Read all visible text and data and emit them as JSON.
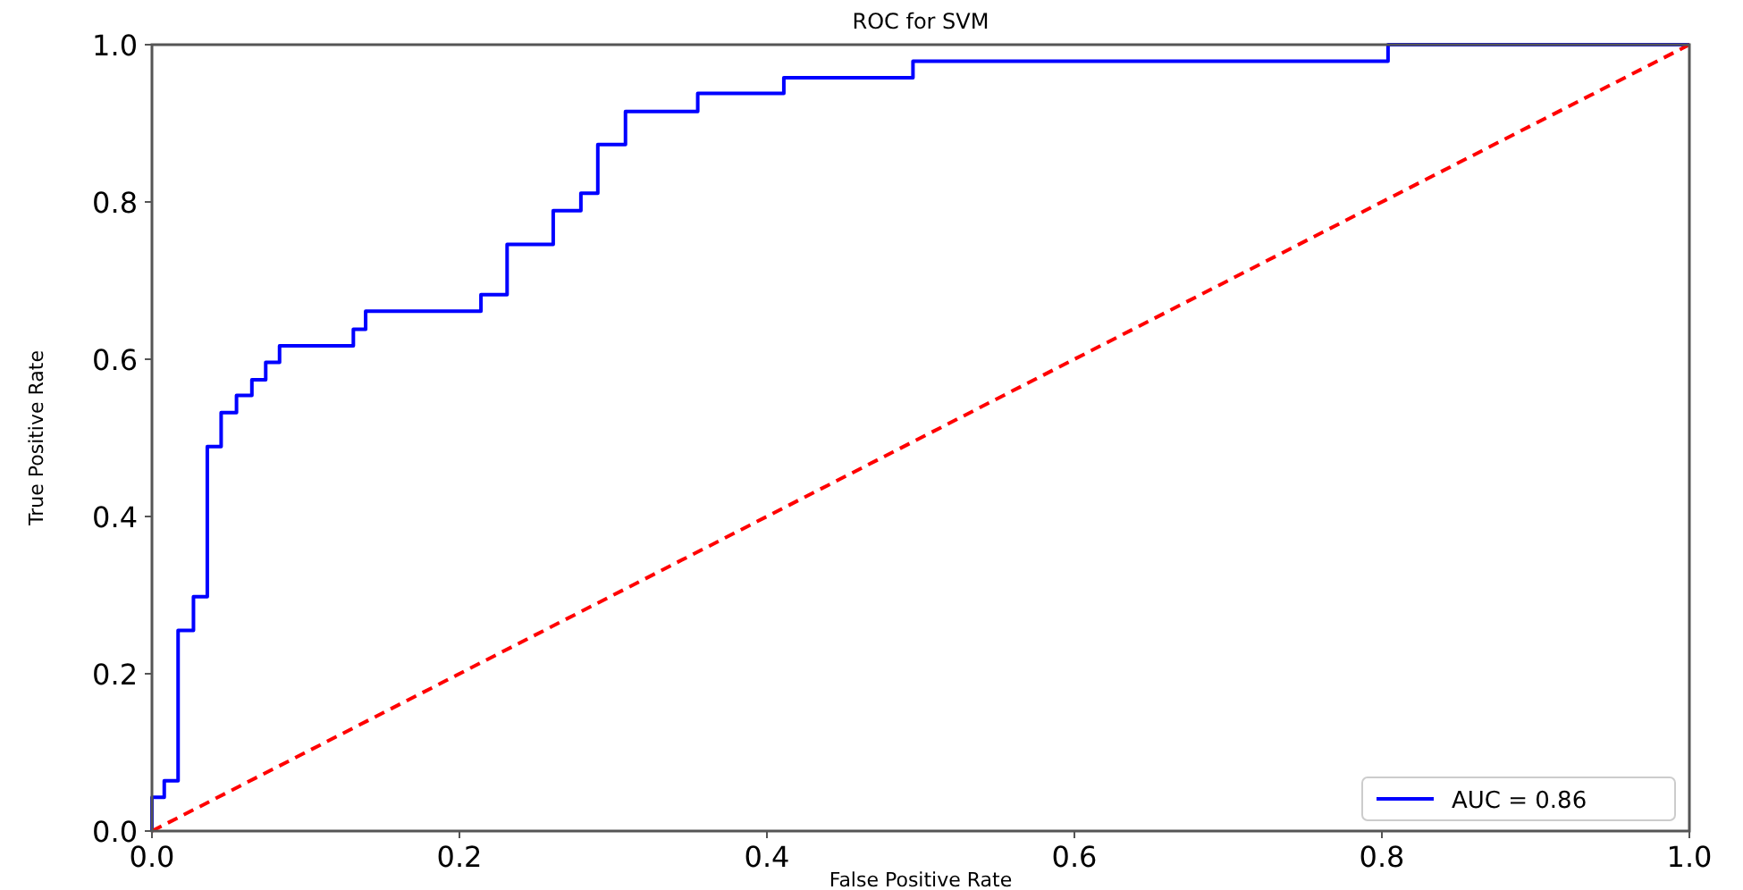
{
  "chart_data": {
    "type": "line",
    "title": "ROC for SVM",
    "xlabel": "False Positive Rate",
    "ylabel": "True Positive Rate",
    "xlim": [
      0,
      1
    ],
    "ylim": [
      0,
      1
    ],
    "xticks": [
      {
        "value": 0,
        "label": "0.0"
      },
      {
        "value": 0.2,
        "label": "0.2"
      },
      {
        "value": 0.4,
        "label": "0.4"
      },
      {
        "value": 0.6,
        "label": "0.6"
      },
      {
        "value": 0.8,
        "label": "0.8"
      },
      {
        "value": 1,
        "label": "1.0"
      }
    ],
    "yticks": [
      {
        "value": 0,
        "label": "0.0"
      },
      {
        "value": 0.2,
        "label": "0.2"
      },
      {
        "value": 0.4,
        "label": "0.4"
      },
      {
        "value": 0.6,
        "label": "0.6"
      },
      {
        "value": 0.8,
        "label": "0.8"
      },
      {
        "value": 1,
        "label": "1.0"
      }
    ],
    "grid": false,
    "legend": "bottom right",
    "series": [
      {
        "name": "AUC = 0.86",
        "color": "#0000ff",
        "line_style": "solid",
        "x": [
          0,
          0,
          0.008,
          0.008,
          0.017,
          0.017,
          0.027,
          0.027,
          0.036,
          0.036,
          0.045,
          0.045,
          0.055,
          0.055,
          0.065,
          0.065,
          0.074,
          0.074,
          0.083,
          0.083,
          0.131,
          0.131,
          0.139,
          0.139,
          0.214,
          0.214,
          0.231,
          0.231,
          0.261,
          0.261,
          0.279,
          0.279,
          0.29,
          0.29,
          0.308,
          0.308,
          0.355,
          0.355,
          0.411,
          0.411,
          0.495,
          0.495,
          0.804,
          0.804,
          1
        ],
        "values": [
          0,
          0.043,
          0.043,
          0.064,
          0.064,
          0.255,
          0.255,
          0.298,
          0.298,
          0.489,
          0.489,
          0.532,
          0.532,
          0.554,
          0.554,
          0.574,
          0.574,
          0.596,
          0.596,
          0.617,
          0.617,
          0.638,
          0.638,
          0.661,
          0.661,
          0.682,
          0.682,
          0.746,
          0.746,
          0.789,
          0.789,
          0.811,
          0.811,
          0.873,
          0.873,
          0.915,
          0.915,
          0.938,
          0.938,
          0.958,
          0.958,
          0.979,
          0.979,
          1,
          1
        ]
      },
      {
        "color": "#ff0000",
        "line_style": "dashed",
        "x": [
          0,
          1
        ],
        "values": [
          0,
          1
        ]
      }
    ]
  }
}
